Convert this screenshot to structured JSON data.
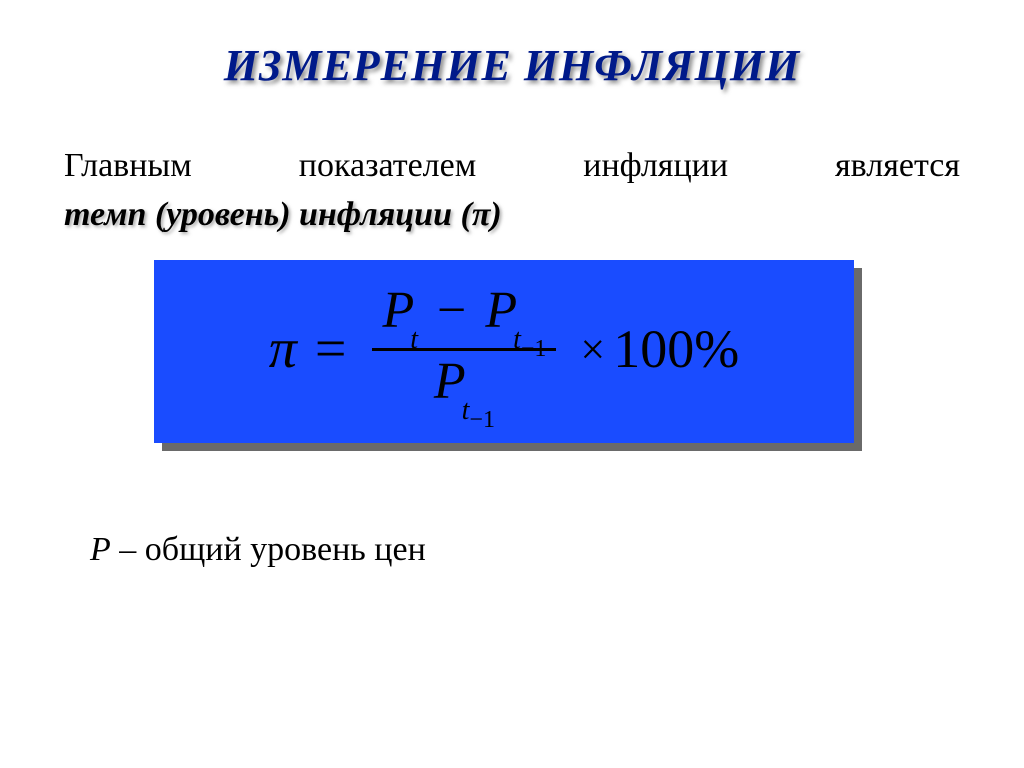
{
  "title": "ИЗМЕРЕНИЕ ИНФЛЯЦИИ",
  "intro_plain_1": "Главным показателем инфляции является",
  "intro_bold": "темп (уровень) инфляции (",
  "intro_pi": "π",
  "intro_close": ")",
  "formula": {
    "lhs": "π",
    "eq": "=",
    "num_P1": "P",
    "num_sub1": "t",
    "minus": "−",
    "num_P2": "P",
    "num_sub2_t": "t",
    "num_sub2_m1": "−1",
    "den_P": "P",
    "den_sub_t": "t",
    "den_sub_m1": "−1",
    "times": "×",
    "hundred": "100%"
  },
  "footnote_var": "P",
  "footnote_text": " – общий уровень цен",
  "colors": {
    "title_color": "#001a8a",
    "formula_bg": "#1a4cff",
    "shadow_bg": "#6a6a6a",
    "text": "#000000",
    "page_bg": "#ffffff"
  }
}
